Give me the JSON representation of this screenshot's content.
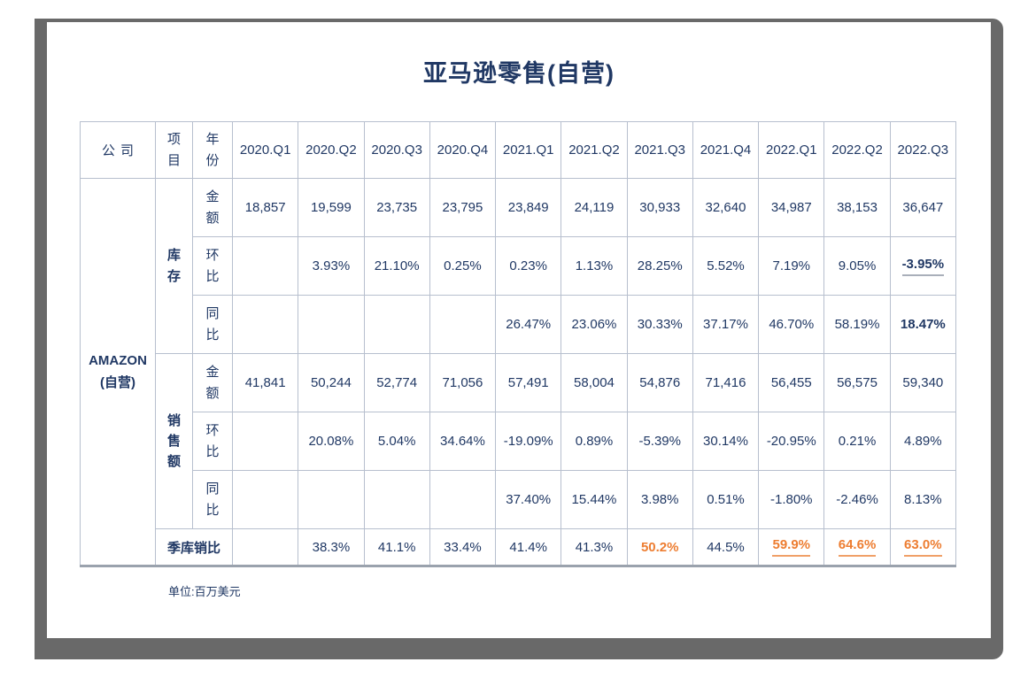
{
  "colors": {
    "text_navy": "#203864",
    "accent_orange": "#ed7d31",
    "grid_border": "#b7bfce",
    "table_bottom_border": "#9aa2ad",
    "frame_gray": "#696969",
    "gray_underline": "#a9afba"
  },
  "page": {
    "title": "亚马逊零售(自营)",
    "unit_note": "单位:百万美元"
  },
  "table": {
    "col_headers": {
      "company": "公司",
      "item": "项目",
      "year": "年份"
    },
    "quarters": [
      "2020.Q1",
      "2020.Q2",
      "2020.Q3",
      "2020.Q4",
      "2021.Q1",
      "2021.Q2",
      "2021.Q3",
      "2021.Q4",
      "2022.Q1",
      "2022.Q2",
      "2022.Q3"
    ],
    "company": {
      "line1": "AMAZON",
      "line2": "(自营)"
    },
    "sections": {
      "inventory": "库存",
      "sales": "销售额"
    },
    "row_labels": {
      "amount": "金额",
      "qoq": "环比",
      "yoy": "同比"
    },
    "ratio_label": "季库销比",
    "rows": {
      "inv_amount": [
        "18,857",
        "19,599",
        "23,735",
        "23,795",
        "23,849",
        "24,119",
        "30,933",
        "32,640",
        "34,987",
        "38,153",
        "36,647"
      ],
      "inv_qoq": [
        "",
        "3.93%",
        "21.10%",
        "0.25%",
        "0.23%",
        "1.13%",
        "28.25%",
        "5.52%",
        "7.19%",
        "9.05%",
        "-3.95%"
      ],
      "inv_yoy": [
        "",
        "",
        "",
        "",
        "26.47%",
        "23.06%",
        "30.33%",
        "37.17%",
        "46.70%",
        "58.19%",
        "18.47%"
      ],
      "sales_amount": [
        "41,841",
        "50,244",
        "52,774",
        "71,056",
        "57,491",
        "58,004",
        "54,876",
        "71,416",
        "56,455",
        "56,575",
        "59,340"
      ],
      "sales_qoq": [
        "",
        "20.08%",
        "5.04%",
        "34.64%",
        "-19.09%",
        "0.89%",
        "-5.39%",
        "30.14%",
        "-20.95%",
        "0.21%",
        "4.89%"
      ],
      "sales_yoy": [
        "",
        "",
        "",
        "",
        "37.40%",
        "15.44%",
        "3.98%",
        "0.51%",
        "-1.80%",
        "-2.46%",
        "8.13%"
      ],
      "ratio": [
        "",
        "38.3%",
        "41.1%",
        "33.4%",
        "41.4%",
        "41.3%",
        "50.2%",
        "44.5%",
        "59.9%",
        "64.6%",
        "63.0%"
      ]
    }
  }
}
